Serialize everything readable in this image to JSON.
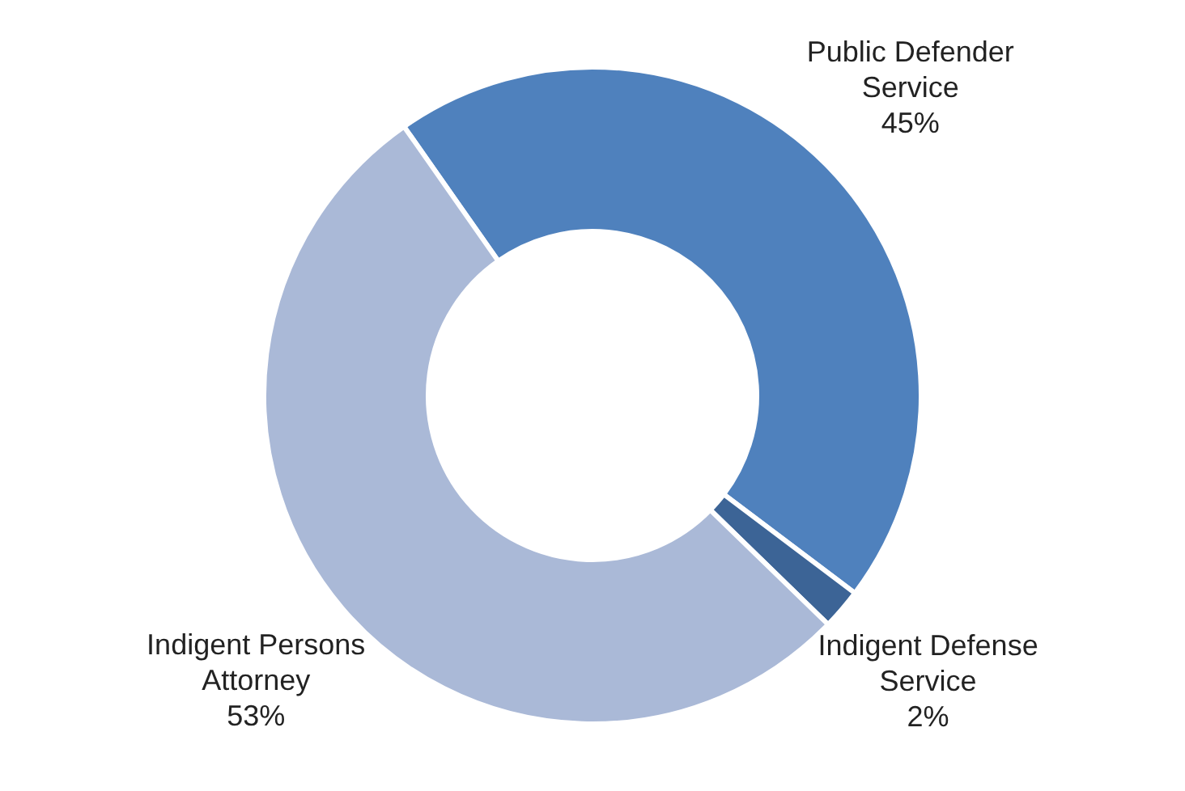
{
  "chart_data": {
    "type": "donut",
    "categories": [
      "Public Defender Service",
      "Indigent Defense Service",
      "Indigent Persons Attorney"
    ],
    "values": [
      45,
      2,
      53
    ],
    "colors": [
      "#4f81bd",
      "#3c6496",
      "#aab9d7"
    ],
    "value_labels": [
      "45%",
      "2%",
      "53%"
    ],
    "legend": false
  }
}
